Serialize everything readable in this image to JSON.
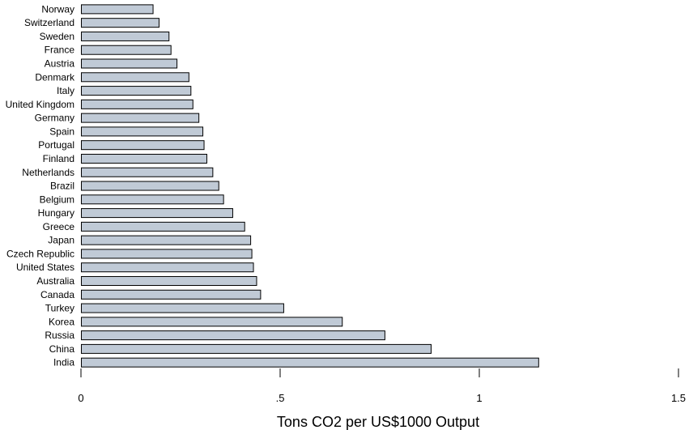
{
  "chart_data": {
    "type": "bar",
    "orientation": "horizontal",
    "categories": [
      "Norway",
      "Switzerland",
      "Sweden",
      "France",
      "Austria",
      "Denmark",
      "Italy",
      "United Kingdom",
      "Germany",
      "Spain",
      "Portugal",
      "Finland",
      "Netherlands",
      "Brazil",
      "Belgium",
      "Hungary",
      "Greece",
      "Japan",
      "Czech Republic",
      "United States",
      "Australia",
      "Canada",
      "Turkey",
      "Korea",
      "Russia",
      "China",
      "India"
    ],
    "values": [
      0.18,
      0.195,
      0.22,
      0.225,
      0.24,
      0.27,
      0.275,
      0.28,
      0.295,
      0.305,
      0.308,
      0.315,
      0.33,
      0.345,
      0.357,
      0.38,
      0.41,
      0.425,
      0.428,
      0.432,
      0.44,
      0.45,
      0.508,
      0.655,
      0.762,
      0.878,
      1.148
    ],
    "xlabel": "Tons CO2 per US$1000 Output",
    "ylabel": "",
    "xlim": [
      0,
      1.5
    ],
    "xticks": [
      {
        "value": 0,
        "label": "0"
      },
      {
        "value": 0.5,
        "label": ".5"
      },
      {
        "value": 1,
        "label": "1"
      },
      {
        "value": 1.5,
        "label": "1.5"
      }
    ],
    "colors": {
      "bar_fill": "#c0cad6",
      "bar_edge": "#000000"
    },
    "grid": false,
    "legend": "none"
  }
}
